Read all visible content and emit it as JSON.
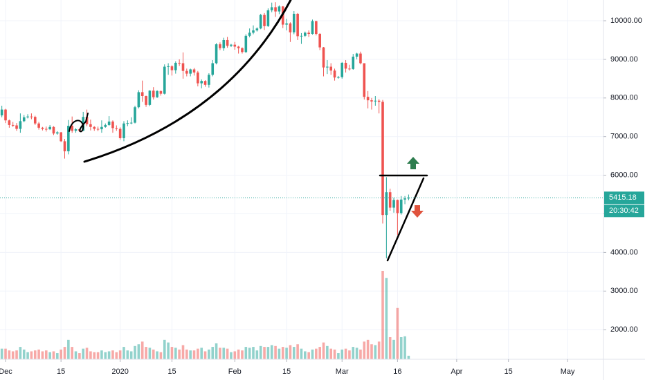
{
  "chart_data": {
    "type": "candlestick",
    "x": [
      -1,
      0,
      1,
      2,
      3,
      4,
      5,
      6,
      7,
      8,
      9,
      10,
      11,
      12,
      13,
      14,
      15,
      16,
      17,
      18,
      19,
      20,
      21,
      22,
      23,
      24,
      25,
      26,
      27,
      28,
      29,
      30,
      31,
      32,
      33,
      34,
      35,
      36,
      37,
      38,
      39,
      40,
      41,
      42,
      43,
      44,
      45,
      46,
      47,
      48,
      49,
      50,
      51,
      52,
      53,
      54,
      55,
      56,
      57,
      58,
      59,
      60,
      61,
      62,
      63,
      64,
      65,
      66,
      67,
      68,
      69,
      70,
      71,
      72,
      73,
      74,
      75,
      76,
      77,
      78,
      79,
      80,
      81,
      82,
      83,
      84,
      85,
      86,
      87,
      88,
      89,
      90,
      91,
      92,
      93,
      94,
      95,
      96,
      97,
      98,
      99,
      100,
      101,
      102,
      103,
      104,
      105,
      106,
      107,
      108,
      109
    ],
    "open": [
      7550,
      7700,
      7420,
      7300,
      7290,
      7200,
      7400,
      7500,
      7520,
      7510,
      7340,
      7230,
      7200,
      7190,
      7250,
      7080,
      7110,
      6880,
      6620,
      7280,
      7150,
      7190,
      7150,
      7510,
      7320,
      7250,
      7200,
      7190,
      7250,
      7300,
      7390,
      7220,
      7200,
      6960,
      7340,
      7350,
      7360,
      7760,
      8150,
      8050,
      7820,
      8190,
      8020,
      8180,
      8110,
      8810,
      8820,
      8720,
      8910,
      8900,
      8700,
      8630,
      8740,
      8660,
      8380,
      8440,
      8340,
      8600,
      8900,
      9390,
      9290,
      9500,
      9350,
      9380,
      9330,
      9290,
      9190,
      9610,
      9690,
      9750,
      9800,
      10150,
      9860,
      10270,
      10350,
      10240,
      10370,
      9900,
      9930,
      9700,
      10180,
      9600,
      9610,
      9690,
      9660,
      9990,
      9660,
      9310,
      8790,
      8810,
      8710,
      8530,
      8540,
      8910,
      8760,
      8750,
      9070,
      9150,
      8900,
      8030,
      7940,
      7910,
      7930,
      7900,
      4970,
      5560,
      5160,
      5360,
      5020,
      5370,
      5400
    ],
    "high": [
      7800,
      7720,
      7440,
      7380,
      7350,
      7600,
      7560,
      7580,
      7600,
      7540,
      7380,
      7250,
      7260,
      7300,
      7270,
      7140,
      7120,
      6940,
      7430,
      7520,
      7220,
      7200,
      7640,
      7700,
      7440,
      7270,
      7260,
      7420,
      7340,
      7530,
      7420,
      7290,
      7240,
      7400,
      7420,
      7500,
      7800,
      8200,
      8450,
      8060,
      8200,
      8280,
      8200,
      8190,
      8870,
      8900,
      8850,
      8950,
      9000,
      9180,
      8760,
      8760,
      8780,
      8700,
      8480,
      8460,
      8640,
      8980,
      9420,
      9440,
      9560,
      9580,
      9400,
      9450,
      9350,
      9310,
      9650,
      9800,
      9880,
      9830,
      10180,
      10200,
      10320,
      10470,
      10480,
      10400,
      10380,
      10050,
      9960,
      10250,
      10200,
      9680,
      9720,
      9750,
      10030,
      10000,
      9680,
      9320,
      8980,
      8900,
      8760,
      8570,
      8930,
      8980,
      8860,
      9140,
      9170,
      9200,
      8900,
      8180,
      8000,
      8050,
      7970,
      7950,
      5950,
      5650,
      5420,
      5370,
      5460,
      5460,
      5500
    ],
    "low": [
      7500,
      7350,
      7230,
      7250,
      7150,
      7100,
      7370,
      7470,
      7450,
      7300,
      7180,
      7160,
      7130,
      7170,
      7040,
      7050,
      6860,
      6430,
      6540,
      7100,
      7100,
      7120,
      7140,
      7270,
      7160,
      7150,
      7140,
      7100,
      7230,
      7280,
      7100,
      7150,
      6920,
      6880,
      7270,
      7320,
      7340,
      7730,
      7900,
      7770,
      7790,
      7960,
      8000,
      8060,
      8090,
      8600,
      8580,
      8630,
      8830,
      8500,
      8560,
      8560,
      8580,
      8300,
      8250,
      8290,
      8270,
      8560,
      8870,
      9240,
      9220,
      9300,
      9320,
      9250,
      9150,
      9150,
      9160,
      9570,
      9650,
      9720,
      9780,
      9760,
      9840,
      10220,
      10100,
      10170,
      9810,
      9750,
      9450,
      9650,
      9500,
      9400,
      9580,
      9580,
      9640,
      9620,
      9240,
      8560,
      8620,
      8600,
      8450,
      8500,
      8500,
      8660,
      8710,
      8730,
      9000,
      8870,
      7960,
      7730,
      7700,
      7800,
      7600,
      4750,
      3850,
      5080,
      5030,
      4450,
      4980,
      5250,
      5350
    ],
    "close": [
      7700,
      7420,
      7300,
      7290,
      7200,
      7400,
      7500,
      7520,
      7510,
      7340,
      7230,
      7200,
      7190,
      7250,
      7080,
      7110,
      6880,
      6620,
      7280,
      7150,
      7190,
      7150,
      7510,
      7320,
      7250,
      7200,
      7190,
      7250,
      7300,
      7390,
      7220,
      7200,
      6960,
      7340,
      7350,
      7360,
      7760,
      8150,
      8050,
      7820,
      8190,
      8020,
      8180,
      8110,
      8810,
      8820,
      8720,
      8910,
      8900,
      8700,
      8630,
      8740,
      8660,
      8380,
      8440,
      8340,
      8600,
      8900,
      9390,
      9290,
      9500,
      9350,
      9380,
      9330,
      9290,
      9190,
      9610,
      9690,
      9750,
      9800,
      10150,
      9860,
      10270,
      10350,
      10240,
      10370,
      9900,
      9930,
      9700,
      10180,
      9600,
      9610,
      9690,
      9660,
      9990,
      9660,
      9310,
      8790,
      8810,
      8710,
      8530,
      8540,
      8910,
      8760,
      8750,
      9070,
      9150,
      8900,
      8030,
      7940,
      7910,
      7930,
      7900,
      4970,
      5560,
      5160,
      5360,
      5020,
      5370,
      5400,
      5415.18
    ],
    "volume": [
      12,
      12,
      10,
      9,
      10,
      14,
      11,
      8,
      9,
      10,
      11,
      9,
      10,
      8,
      9,
      7,
      11,
      14,
      22,
      14,
      9,
      7,
      12,
      13,
      9,
      8,
      8,
      10,
      8,
      9,
      10,
      8,
      10,
      14,
      10,
      9,
      15,
      17,
      20,
      14,
      13,
      11,
      9,
      8,
      22,
      19,
      14,
      13,
      11,
      16,
      11,
      10,
      10,
      12,
      13,
      9,
      11,
      14,
      18,
      13,
      13,
      12,
      8,
      9,
      11,
      10,
      14,
      13,
      14,
      10,
      15,
      14,
      14,
      16,
      15,
      12,
      14,
      13,
      16,
      14,
      17,
      12,
      9,
      8,
      11,
      12,
      14,
      19,
      15,
      12,
      11,
      7,
      11,
      12,
      10,
      14,
      13,
      11,
      20,
      22,
      17,
      16,
      20,
      100,
      92,
      25,
      22,
      58,
      25,
      26,
      4
    ],
    "up_color": "#26a69a",
    "down_color": "#ef5350",
    "xlim": [
      -1.5,
      161.7
    ],
    "xticks": [
      {
        "value": 0,
        "label": "Dec"
      },
      15,
      {
        "value": 31,
        "label": "2020"
      },
      {
        "value": 45,
        "label": "15"
      },
      {
        "value": 62,
        "label": "Feb"
      },
      {
        "value": 76,
        "label": "15"
      },
      {
        "value": 91,
        "label": "Mar"
      },
      {
        "value": 106,
        "label": "16"
      },
      {
        "value": 122,
        "label": "Apr"
      },
      {
        "value": 136,
        "label": "15"
      },
      {
        "value": 152,
        "label": "May"
      }
    ],
    "ylim": [
      1234,
      10537
    ],
    "yticks": [
      {
        "value": 2000,
        "label": "2000.00"
      },
      {
        "value": 3000,
        "label": "3000.00"
      },
      {
        "value": 4000,
        "label": "4000.00"
      },
      {
        "value": 5000,
        "label": "5000.00"
      },
      {
        "value": 6000,
        "label": "6000.00"
      },
      {
        "value": 7000,
        "label": "7000.00"
      },
      {
        "value": 8000,
        "label": "8000.00"
      },
      {
        "value": 9000,
        "label": "9000.00"
      },
      {
        "value": 10000,
        "label": "10000.00"
      }
    ],
    "vlim": [
      0,
      100
    ],
    "grid": true,
    "last_price": 5415.18,
    "countdown": "20:30:42"
  }
}
